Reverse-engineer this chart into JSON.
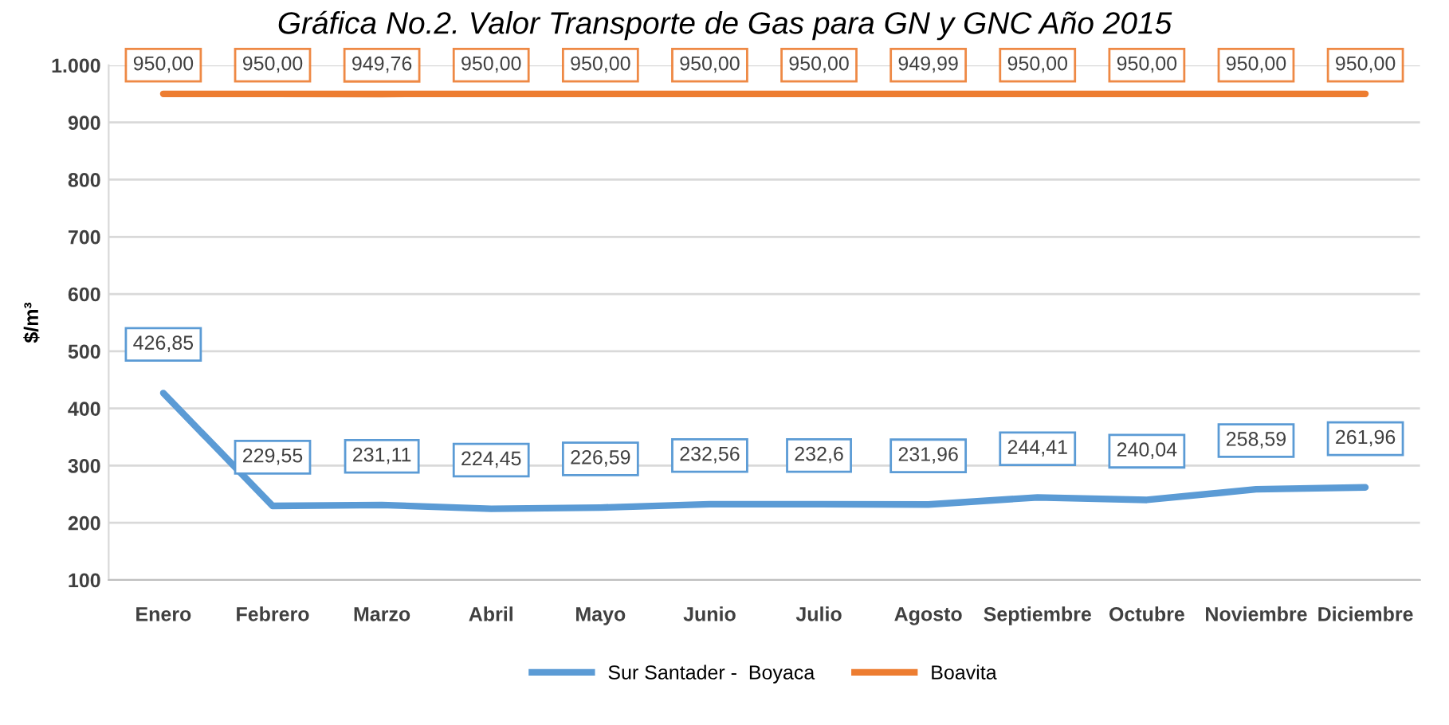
{
  "chart_data": {
    "type": "line",
    "title": "Gráfica No.2. Valor Transporte de Gas para GN y GNC Año 2015",
    "ylabel": "$/m³",
    "categories": [
      "Enero",
      "Febrero",
      "Marzo",
      "Abril",
      "Mayo",
      "Junio",
      "Julio",
      "Agosto",
      "Septiembre",
      "Octubre",
      "Noviembre",
      "Diciembre"
    ],
    "series": [
      {
        "name": "Sur Santader -  Boyaca",
        "color": "#5b9bd5",
        "values": [
          426.85,
          229.55,
          231.11,
          224.45,
          226.59,
          232.56,
          232.6,
          231.96,
          244.41,
          240.04,
          258.59,
          261.96
        ],
        "value_labels": [
          "426,85",
          "229,55",
          "231,11",
          "224,45",
          "226,59",
          "232,56",
          "232,6",
          "231,96",
          "244,41",
          "240,04",
          "258,59",
          "261,96"
        ]
      },
      {
        "name": "Boavita",
        "color": "#ed7d31",
        "values": [
          950.0,
          950.0,
          949.76,
          950.0,
          950.0,
          950.0,
          950.0,
          949.99,
          950.0,
          950.0,
          950.0,
          950.0
        ],
        "value_labels": [
          "950,00",
          "950,00",
          "949,76",
          "950,00",
          "950,00",
          "950,00",
          "950,00",
          "949,99",
          "950,00",
          "950,00",
          "950,00",
          "950,00"
        ]
      }
    ],
    "ylim": [
      100,
      1000
    ],
    "yticks": [
      100,
      200,
      300,
      400,
      500,
      600,
      700,
      800,
      900,
      {
        "value": 1000,
        "label": "1.000"
      }
    ],
    "grid": "y",
    "legend": "bottom",
    "marker": "none",
    "line_style": "solid"
  }
}
